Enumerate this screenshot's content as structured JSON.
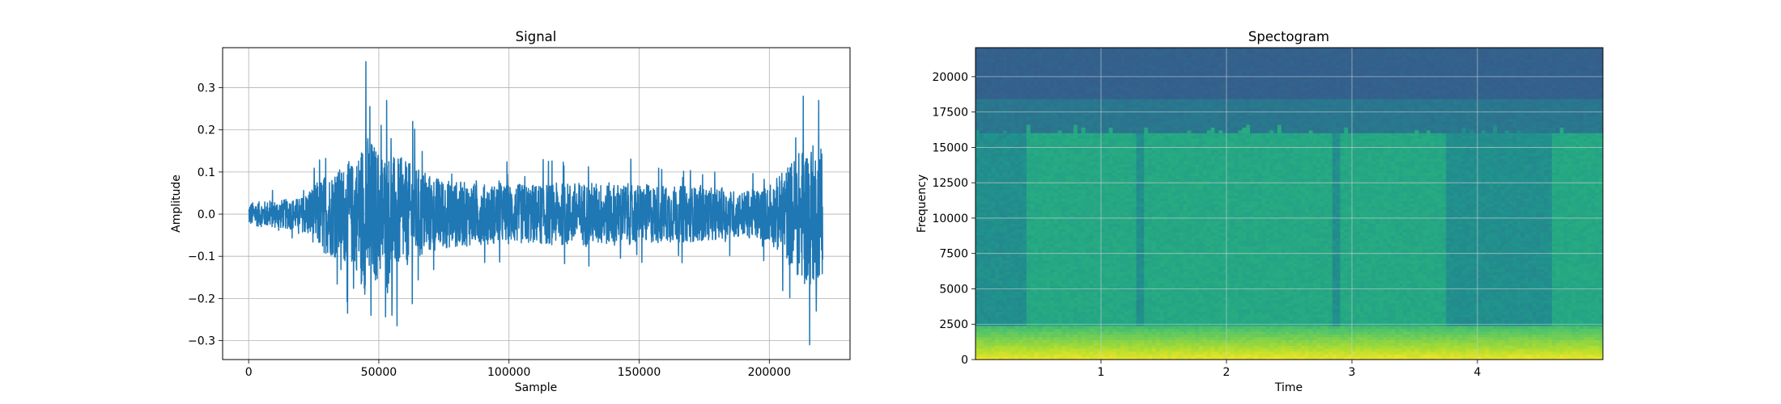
{
  "chart_data": [
    {
      "type": "line",
      "title": "Signal",
      "xlabel": "Sample",
      "ylabel": "Amplitude",
      "xlim": [
        -10000,
        231000
      ],
      "ylim": [
        -0.345,
        0.395
      ],
      "xticks": [
        0,
        50000,
        100000,
        150000,
        200000
      ],
      "xtick_labels": [
        "0",
        "50000",
        "100000",
        "150000",
        "200000"
      ],
      "yticks": [
        -0.3,
        -0.2,
        -0.1,
        0.0,
        0.1,
        0.2,
        0.3
      ],
      "ytick_labels": [
        "−0.3",
        "−0.2",
        "−0.1",
        "0.0",
        "0.1",
        "0.2",
        "0.3"
      ],
      "grid": true,
      "line_color": "#1f77b4",
      "x_range": [
        0,
        220500
      ],
      "envelope": [
        [
          0,
          0.05
        ],
        [
          10000,
          0.06
        ],
        [
          20000,
          0.07
        ],
        [
          28000,
          0.16
        ],
        [
          35000,
          0.2
        ],
        [
          41000,
          0.23
        ],
        [
          45000,
          0.36
        ],
        [
          50000,
          0.28
        ],
        [
          56000,
          0.25
        ],
        [
          62000,
          0.22
        ],
        [
          68000,
          0.18
        ],
        [
          75000,
          0.15
        ],
        [
          90000,
          0.13
        ],
        [
          110000,
          0.13
        ],
        [
          130000,
          0.14
        ],
        [
          150000,
          0.13
        ],
        [
          170000,
          0.12
        ],
        [
          190000,
          0.1
        ],
        [
          200000,
          0.12
        ],
        [
          206000,
          0.2
        ],
        [
          212000,
          0.28
        ],
        [
          216000,
          0.31
        ],
        [
          220500,
          0.26
        ]
      ],
      "peaks": [
        {
          "x": 45000,
          "y": 0.362
        },
        {
          "x": 53000,
          "y": 0.27
        },
        {
          "x": 55000,
          "y": 0.24
        },
        {
          "x": 47000,
          "y": -0.24
        },
        {
          "x": 55000,
          "y": -0.24
        },
        {
          "x": 57000,
          "y": -0.265
        },
        {
          "x": 63000,
          "y": 0.22
        },
        {
          "x": 38000,
          "y": -0.235
        },
        {
          "x": 213000,
          "y": 0.28
        },
        {
          "x": 219000,
          "y": 0.27
        },
        {
          "x": 215500,
          "y": -0.31
        },
        {
          "x": 218000,
          "y": -0.23
        }
      ]
    },
    {
      "type": "heatmap",
      "title": "Spectogram",
      "xlabel": "Time",
      "ylabel": "Frequency",
      "xlim": [
        0,
        5
      ],
      "ylim": [
        0,
        22050
      ],
      "xticks": [
        1,
        2,
        3,
        4
      ],
      "xtick_labels": [
        "1",
        "2",
        "3",
        "4"
      ],
      "yticks": [
        0,
        2500,
        5000,
        7500,
        10000,
        12500,
        15000,
        17500,
        20000
      ],
      "ytick_labels": [
        "0",
        "2500",
        "5000",
        "7500",
        "10000",
        "12500",
        "15000",
        "17500",
        "20000"
      ],
      "grid": true,
      "colormap": "viridis",
      "bright_time_ranges": [
        [
          0.42,
          1.27
        ],
        [
          1.35,
          2.85
        ],
        [
          2.9,
          3.75
        ],
        [
          4.58,
          5.0
        ]
      ],
      "cutoff_frequency": 16000,
      "upper_band_frequency": 18500,
      "low_band_frequency": 2500
    }
  ]
}
